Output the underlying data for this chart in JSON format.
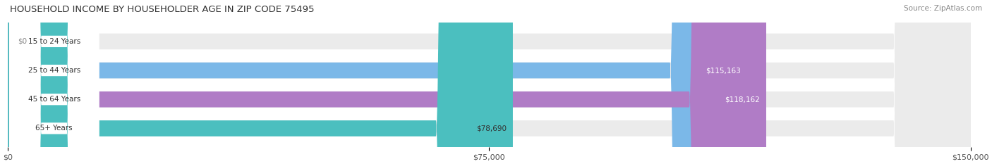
{
  "title": "HOUSEHOLD INCOME BY HOUSEHOLDER AGE IN ZIP CODE 75495",
  "source": "Source: ZipAtlas.com",
  "categories": [
    "15 to 24 Years",
    "25 to 44 Years",
    "45 to 64 Years",
    "65+ Years"
  ],
  "values": [
    0,
    115163,
    118162,
    78690
  ],
  "bar_colors": [
    "#f4a0a0",
    "#7bb8e8",
    "#b07cc6",
    "#4bbfbf"
  ],
  "bar_bg_color": "#ebebeb",
  "label_colors": [
    "#888888",
    "#ffffff",
    "#ffffff",
    "#333333"
  ],
  "value_labels": [
    "$0",
    "$115,163",
    "$118,162",
    "$78,690"
  ],
  "xlim": [
    0,
    150000
  ],
  "xticks": [
    0,
    75000,
    150000
  ],
  "xtick_labels": [
    "$0",
    "$75,000",
    "$150,000"
  ],
  "background_color": "#ffffff",
  "bar_height": 0.55,
  "figsize": [
    14.06,
    2.33
  ],
  "dpi": 100
}
